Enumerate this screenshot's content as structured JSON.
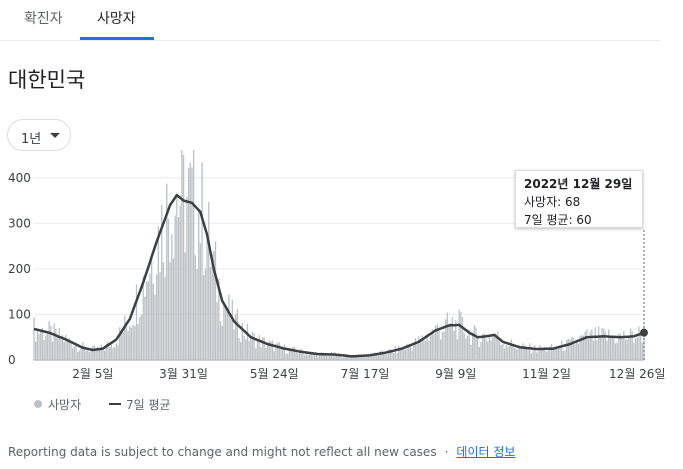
{
  "tabs": [
    {
      "label": "확진자"
    },
    {
      "label": "사망자"
    }
  ],
  "region": {
    "title": "대한민국"
  },
  "range_selector": {
    "label": "1년"
  },
  "tooltip": {
    "date": "2022년 12월 29일",
    "deaths_line": "사망자: 68",
    "avg_line": "7일 평균: 60"
  },
  "legend": {
    "deaths": "사망자",
    "avg": "7일 평균"
  },
  "footer": {
    "note": "Reporting data is subject to change and might not reflect all new cases",
    "separator": "·",
    "link": "데이터 정보"
  },
  "colors": {
    "bars": "#bdc1c6",
    "avg_line": "#3c4043",
    "accent": "#1a73e8"
  },
  "chart_data": {
    "type": "bar",
    "title": "",
    "xlabel": "",
    "ylabel": "",
    "ylim": [
      0,
      450
    ],
    "yticks": [
      0,
      100,
      200,
      300,
      400
    ],
    "x_range_days": [
      1,
      364
    ],
    "xticks": [
      {
        "day": 36,
        "label": "2월 5일"
      },
      {
        "day": 90,
        "label": "3월 31일"
      },
      {
        "day": 144,
        "label": "5월 24일"
      },
      {
        "day": 198,
        "label": "7월 17일"
      },
      {
        "day": 252,
        "label": "9월 9일"
      },
      {
        "day": 306,
        "label": "11월 2일"
      },
      {
        "day": 360,
        "label": "12월 26일"
      }
    ],
    "avg_anchors": [
      [
        1,
        68
      ],
      [
        10,
        60
      ],
      [
        20,
        45
      ],
      [
        30,
        27
      ],
      [
        36,
        22
      ],
      [
        42,
        25
      ],
      [
        50,
        45
      ],
      [
        58,
        90
      ],
      [
        66,
        170
      ],
      [
        74,
        260
      ],
      [
        82,
        340
      ],
      [
        86,
        362
      ],
      [
        90,
        350
      ],
      [
        95,
        345
      ],
      [
        100,
        325
      ],
      [
        104,
        275
      ],
      [
        108,
        200
      ],
      [
        113,
        130
      ],
      [
        120,
        85
      ],
      [
        130,
        50
      ],
      [
        140,
        35
      ],
      [
        150,
        25
      ],
      [
        160,
        18
      ],
      [
        170,
        13
      ],
      [
        180,
        12
      ],
      [
        190,
        8
      ],
      [
        200,
        10
      ],
      [
        210,
        16
      ],
      [
        220,
        25
      ],
      [
        230,
        40
      ],
      [
        240,
        65
      ],
      [
        248,
        76
      ],
      [
        254,
        77
      ],
      [
        260,
        60
      ],
      [
        265,
        50
      ],
      [
        270,
        52
      ],
      [
        275,
        55
      ],
      [
        280,
        40
      ],
      [
        290,
        28
      ],
      [
        300,
        24
      ],
      [
        310,
        25
      ],
      [
        320,
        35
      ],
      [
        330,
        50
      ],
      [
        340,
        52
      ],
      [
        350,
        50
      ],
      [
        358,
        52
      ],
      [
        364,
        60
      ]
    ],
    "series": [
      {
        "name": "사망자",
        "style": "bars"
      },
      {
        "name": "7일 평균",
        "style": "line"
      }
    ],
    "highlight": {
      "label": "2022년 12월 29일",
      "deaths": 68,
      "avg": 60
    }
  }
}
